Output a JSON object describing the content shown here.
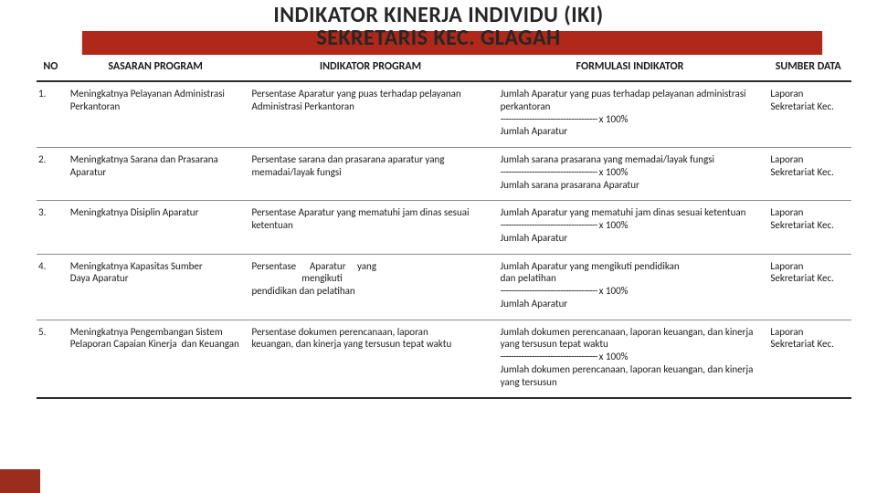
{
  "title": {
    "line1": "INDIKATOR KINERJA INDIVIDU (IKI)",
    "line2": "SEKRETARIS KEC. GLAGAH"
  },
  "banner_color": "#b0281a",
  "accent_color": "#9b2d1f",
  "columns": {
    "no": "NO",
    "sasaran": "SASARAN PROGRAM",
    "indikator": "INDIKATOR PROGRAM",
    "formulasi": "FORMULASI INDIKATOR",
    "sumber": "SUMBER DATA"
  },
  "rows": [
    {
      "no": "1.",
      "sasaran": "Meningkatnya Pelayanan Administrasi Perkantoran",
      "indikator": "Persentase Aparatur yang puas terhadap pelayanan Administrasi Perkantoran",
      "formulasi": "Jumlah Aparatur yang puas terhadap pelayanan administrasi perkantoran\n------------------------------------- x 100%\nJumlah Aparatur",
      "sumber": "Laporan Sekretariat Kec."
    },
    {
      "no": "2.",
      "sasaran": "Meningkatnya Sarana dan Prasarana Aparatur",
      "indikator": "Persentase sarana dan prasarana aparatur yang memadai/layak fungsi",
      "formulasi": "Jumlah sarana prasarana yang memadai/layak fungsi\n------------------------------------- x 100%\nJumlah sarana prasarana Aparatur",
      "sumber": "Laporan Sekretariat Kec."
    },
    {
      "no": "3.",
      "sasaran": "Meningkatnya Disiplin Aparatur",
      "indikator": "Persentase Aparatur yang mematuhi jam dinas sesuai ketentuan",
      "formulasi": "Jumlah Aparatur yang mematuhi jam dinas sesuai ketentuan\n------------------------------------- x 100%\nJumlah Aparatur",
      "sumber": "Laporan Sekretariat Kec."
    },
    {
      "no": "4.",
      "sasaran": "Meningkatnya Kapasitas Sumber\nDaya Aparatur",
      "indikator": "Persentase      Aparatur     yang\n                      mengikuti\npendidikan dan pelatihan",
      "formulasi": "Jumlah Aparatur yang mengikuti pendidikan\ndan pelatihan\n------------------------------------- x 100%\nJumlah Aparatur",
      "sumber": "Laporan Sekretariat Kec."
    },
    {
      "no": "5.",
      "sasaran": "Meningkatnya Pengembangan Sistem Pelaporan Capaian Kinerja  dan Keuangan",
      "indikator": "Persentase dokumen perencanaan, laporan\nkeuangan, dan kinerja yang tersusun tepat waktu",
      "formulasi": "Jumlah dokumen perencanaan, laporan keuangan, dan kinerja yang tersusun tepat waktu\n------------------------------------- x 100%\nJumlah dokumen perencanaan, laporan keuangan, dan kinerja yang tersusun",
      "sumber": "Laporan Sekretariat Kec."
    }
  ]
}
